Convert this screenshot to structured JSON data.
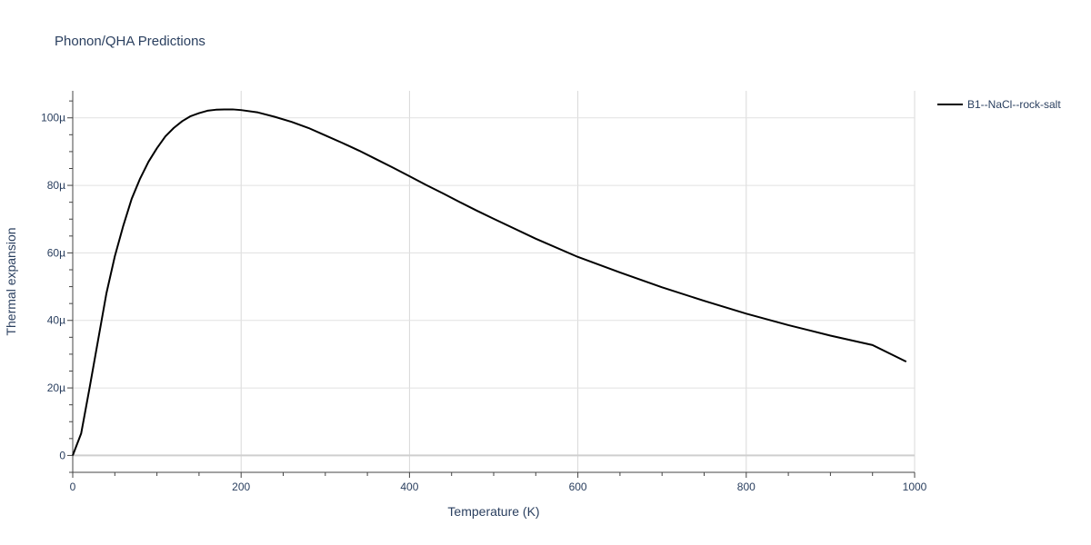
{
  "chart_data": {
    "type": "line",
    "title": "Phonon/QHA Predictions",
    "xlabel": "Temperature (K)",
    "ylabel": "Thermal expansion",
    "xlim": [
      0,
      1000
    ],
    "ylim": [
      -5e-06,
      0.000108
    ],
    "x_ticks": [
      0,
      200,
      400,
      600,
      800,
      1000
    ],
    "x_tick_labels": [
      "0",
      "200",
      "400",
      "600",
      "800",
      "1000"
    ],
    "y_ticks": [
      0,
      2e-05,
      4e-05,
      6e-05,
      8e-05,
      0.0001
    ],
    "y_tick_labels": [
      "0",
      "20µ",
      "40µ",
      "60µ",
      "80µ",
      "100µ"
    ],
    "grid": true,
    "legend_position": "right",
    "series": [
      {
        "name": "B1--NaCl--rock-salt",
        "color": "#000000",
        "x": [
          0,
          10,
          20,
          30,
          40,
          50,
          60,
          70,
          80,
          90,
          100,
          110,
          120,
          130,
          140,
          150,
          160,
          170,
          180,
          190,
          200,
          220,
          240,
          260,
          280,
          300,
          320,
          340,
          360,
          380,
          400,
          420,
          440,
          460,
          480,
          500,
          550,
          600,
          650,
          700,
          750,
          800,
          850,
          900,
          950,
          990
        ],
        "y": [
          0,
          6.5e-06,
          2e-05,
          3.4e-05,
          4.8e-05,
          5.9e-05,
          6.8e-05,
          7.6e-05,
          8.2e-05,
          8.7e-05,
          9.1e-05,
          9.45e-05,
          9.7e-05,
          9.9e-05,
          0.0001005,
          0.0001014,
          0.0001021,
          0.0001024,
          0.0001025,
          0.0001025,
          0.0001023,
          0.0001016,
          0.0001003,
          9.88e-05,
          9.7e-05,
          9.48e-05,
          9.26e-05,
          9.03e-05,
          8.78e-05,
          8.53e-05,
          8.27e-05,
          8.01e-05,
          7.76e-05,
          7.5e-05,
          7.25e-05,
          7.01e-05,
          6.42e-05,
          5.88e-05,
          5.42e-05,
          4.98e-05,
          4.58e-05,
          4.2e-05,
          3.86e-05,
          3.55e-05,
          3.27e-05,
          2.78e-05
        ]
      }
    ]
  }
}
